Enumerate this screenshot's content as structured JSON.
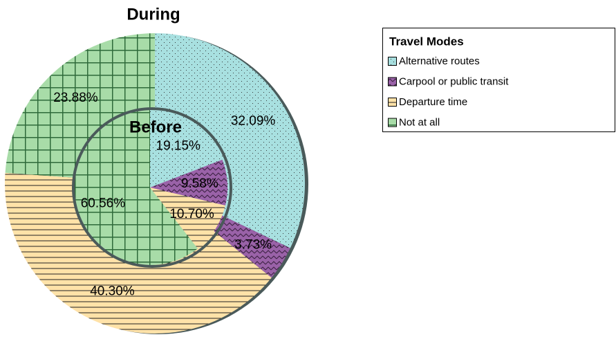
{
  "chart_data": {
    "type": "pie",
    "legend_title": "Travel Modes",
    "categories": [
      "Alternative routes",
      "Carpool or public transit",
      "Departure time",
      "Not at all"
    ],
    "colors": [
      "#a8e0e0",
      "#9a62a8",
      "#ffe2a8",
      "#a8dca8"
    ],
    "series": [
      {
        "name": "During",
        "values": [
          32.09,
          3.73,
          40.3,
          23.88
        ],
        "value_labels": [
          "32.09%",
          "3.73%",
          "40.30%",
          "23.88%"
        ]
      },
      {
        "name": "Before",
        "values": [
          19.15,
          9.58,
          10.7,
          60.56
        ],
        "value_labels": [
          "19.15%",
          "9.58%",
          "10.70%",
          "60.56%"
        ]
      }
    ],
    "legend": "right"
  }
}
